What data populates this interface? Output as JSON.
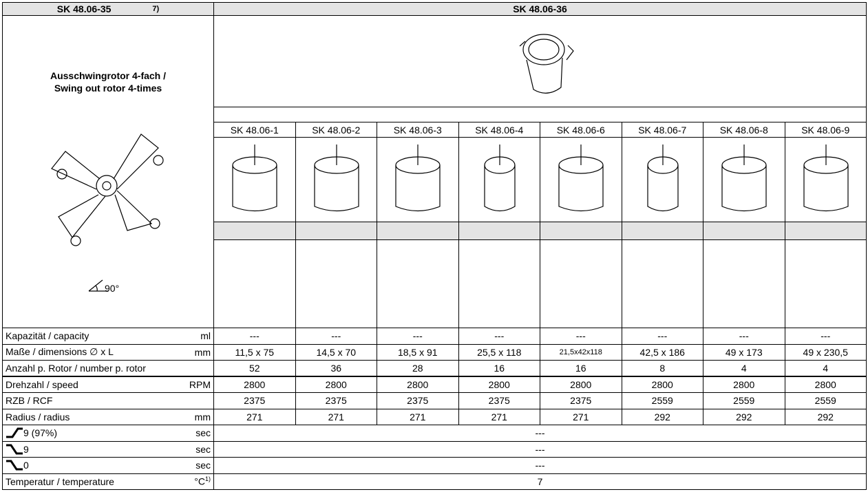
{
  "header": {
    "left": "SK 48.06-35",
    "footnote": "7)",
    "right": "SK 48.06-36"
  },
  "rotor": {
    "title_de": "Ausschwingrotor 4-fach /",
    "title_en": "Swing out rotor 4-times",
    "angle": "90°"
  },
  "models": [
    "SK 48.06-1",
    "SK 48.06-2",
    "SK 48.06-3",
    "SK 48.06-4",
    "SK 48.06-6",
    "SK 48.06-7",
    "SK 48.06-8",
    "SK 48.06-9"
  ],
  "rows": [
    {
      "label": "Kapazität / capacity",
      "unit": "ml",
      "values": [
        "---",
        "---",
        "---",
        "---",
        "---",
        "---",
        "---",
        "---"
      ]
    },
    {
      "label": "Maße / dimensions  ∅ x L",
      "unit": "mm",
      "values": [
        "11,5 x 75",
        "14,5 x 70",
        "18,5 x 91",
        "25,5 x 118",
        "21,5x42x118",
        "42,5 x 186",
        "49 x 173",
        "49 x 230,5"
      ]
    },
    {
      "label": "Anzahl p. Rotor / number p. rotor",
      "values": [
        "52",
        "36",
        "28",
        "16",
        "16",
        "8",
        "4",
        "4"
      ]
    },
    {
      "label": "Drehzahl / speed",
      "unit": "RPM",
      "values": [
        "2800",
        "2800",
        "2800",
        "2800",
        "2800",
        "2800",
        "2800",
        "2800"
      ]
    },
    {
      "label": "RZB / RCF",
      "values": [
        "2375",
        "2375",
        "2375",
        "2375",
        "2375",
        "2559",
        "2559",
        "2559"
      ]
    },
    {
      "label": "Radius / radius",
      "unit": "mm",
      "values": [
        "271",
        "271",
        "271",
        "271",
        "271",
        "292",
        "292",
        "292"
      ]
    },
    {
      "icon": "up",
      "label": "9 (97%)",
      "unit": "sec",
      "value": "---"
    },
    {
      "icon": "down",
      "label": "9",
      "unit": "sec",
      "value": "---"
    },
    {
      "icon": "down",
      "label": "0",
      "unit": "sec",
      "value": "---"
    },
    {
      "label": "Temperatur / temperature",
      "unit": "°C",
      "unit_note": "1)",
      "value": "7"
    }
  ]
}
